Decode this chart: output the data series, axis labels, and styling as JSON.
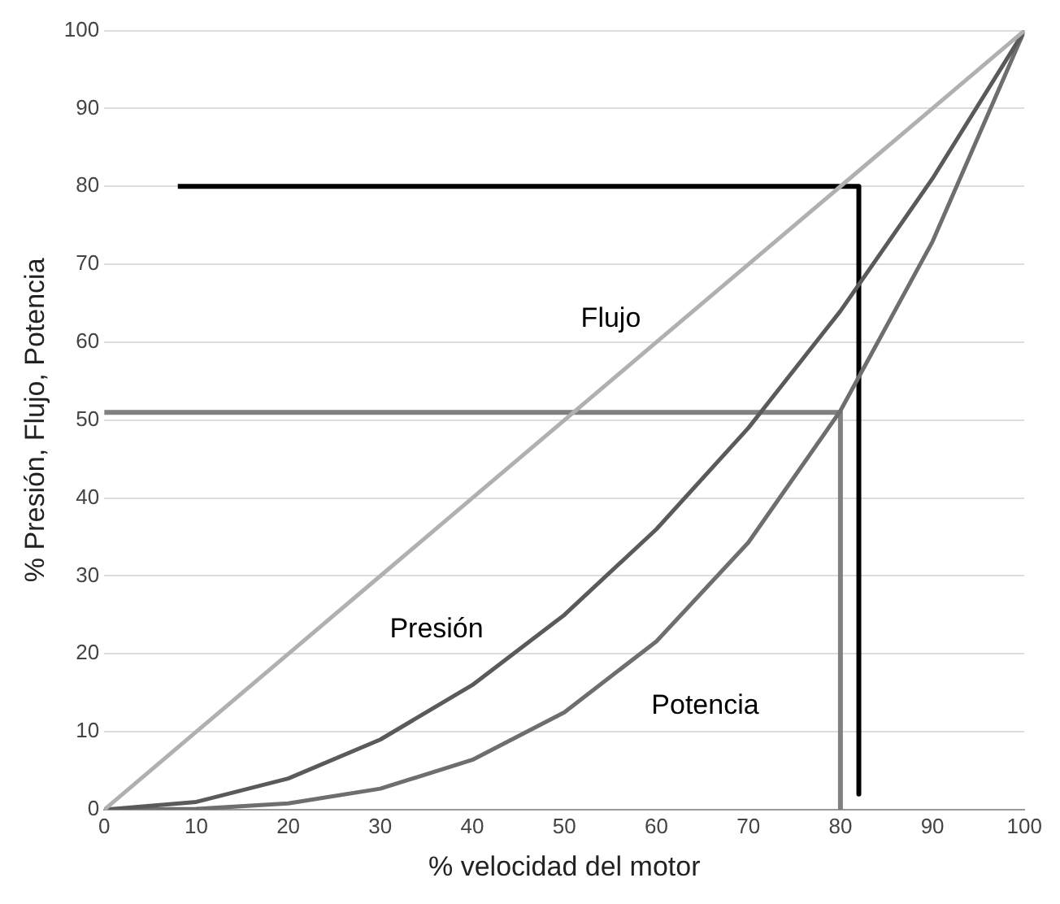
{
  "chart_data": {
    "type": "line",
    "xlabel": "% velocidad del motor",
    "ylabel": "% Presión, Flujo, Potencia",
    "x": [
      0,
      10,
      20,
      30,
      40,
      50,
      60,
      70,
      80,
      90,
      100
    ],
    "series": [
      {
        "name": "Flujo",
        "color": "#b0b0b0",
        "values": [
          0,
          10,
          20,
          30,
          40,
          50,
          60,
          70,
          80,
          90,
          100
        ]
      },
      {
        "name": "Presión",
        "color": "#5a5a5a",
        "values": [
          0,
          1,
          4,
          9,
          16,
          25,
          36,
          49,
          64,
          81,
          100
        ]
      },
      {
        "name": "Potencia",
        "color": "#6e6e6e",
        "values": [
          0,
          0.1,
          0.8,
          2.7,
          6.4,
          12.5,
          21.6,
          34.3,
          51.2,
          72.9,
          100
        ]
      },
      {
        "color": "#808080",
        "x": [
          0,
          80,
          80
        ],
        "values": [
          51,
          51,
          0
        ]
      },
      {
        "color": "#000000",
        "x": [
          8,
          82,
          82
        ],
        "values": [
          80,
          80,
          2
        ]
      }
    ],
    "xlim": [
      0,
      100
    ],
    "xticks": [
      0,
      10,
      20,
      30,
      40,
      50,
      60,
      70,
      80,
      90,
      100
    ],
    "ylim": [
      0,
      100
    ],
    "yticks": [
      0,
      10,
      20,
      30,
      40,
      50,
      60,
      70,
      80,
      90,
      100
    ],
    "grid": "y",
    "legend": false,
    "marker": "none",
    "line_style": "solid"
  }
}
